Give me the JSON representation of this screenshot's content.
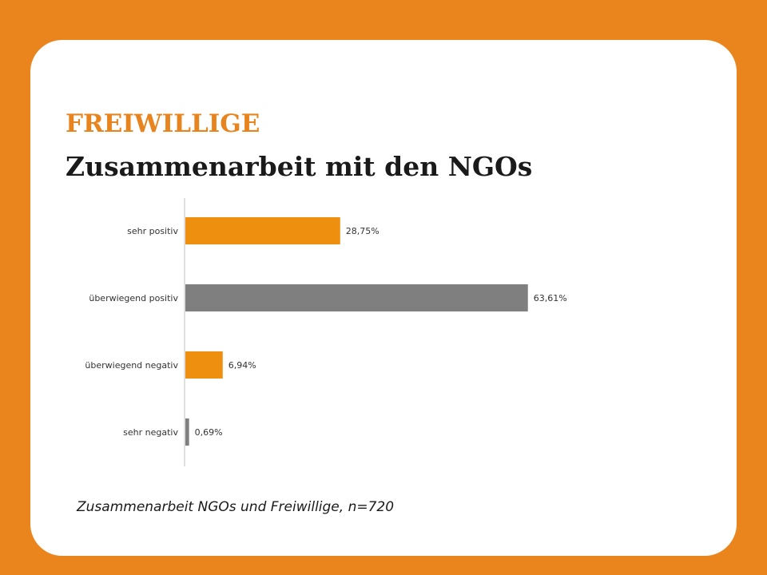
{
  "slide": {
    "kicker": "FREIWILLIGE",
    "title": "Zusammenarbeit mit den NGOs",
    "caption": "Zusammenarbeit NGOs und Freiwillige, n=720"
  },
  "colors": {
    "background": "#ea851e",
    "card": "#ffffff",
    "accent": "#e8841d",
    "bar_orange": "#ef8f10",
    "bar_gray": "#7f7f7f",
    "axis": "#bfbfbf"
  },
  "chart_data": {
    "type": "bar",
    "orientation": "horizontal",
    "title": "",
    "xlabel": "",
    "ylabel": "",
    "xlim": [
      0,
      70
    ],
    "grid": false,
    "legend": "none",
    "categories": [
      "sehr positiv",
      "überwiegend positiv",
      "überwiegend negativ",
      "sehr negativ"
    ],
    "values": [
      28.75,
      63.61,
      6.94,
      0.69
    ],
    "value_labels": [
      "28,75%",
      "63,61%",
      "6,94%",
      "0,69%"
    ],
    "bar_colors": [
      "#ef8f10",
      "#7f7f7f",
      "#ef8f10",
      "#7f7f7f"
    ]
  }
}
